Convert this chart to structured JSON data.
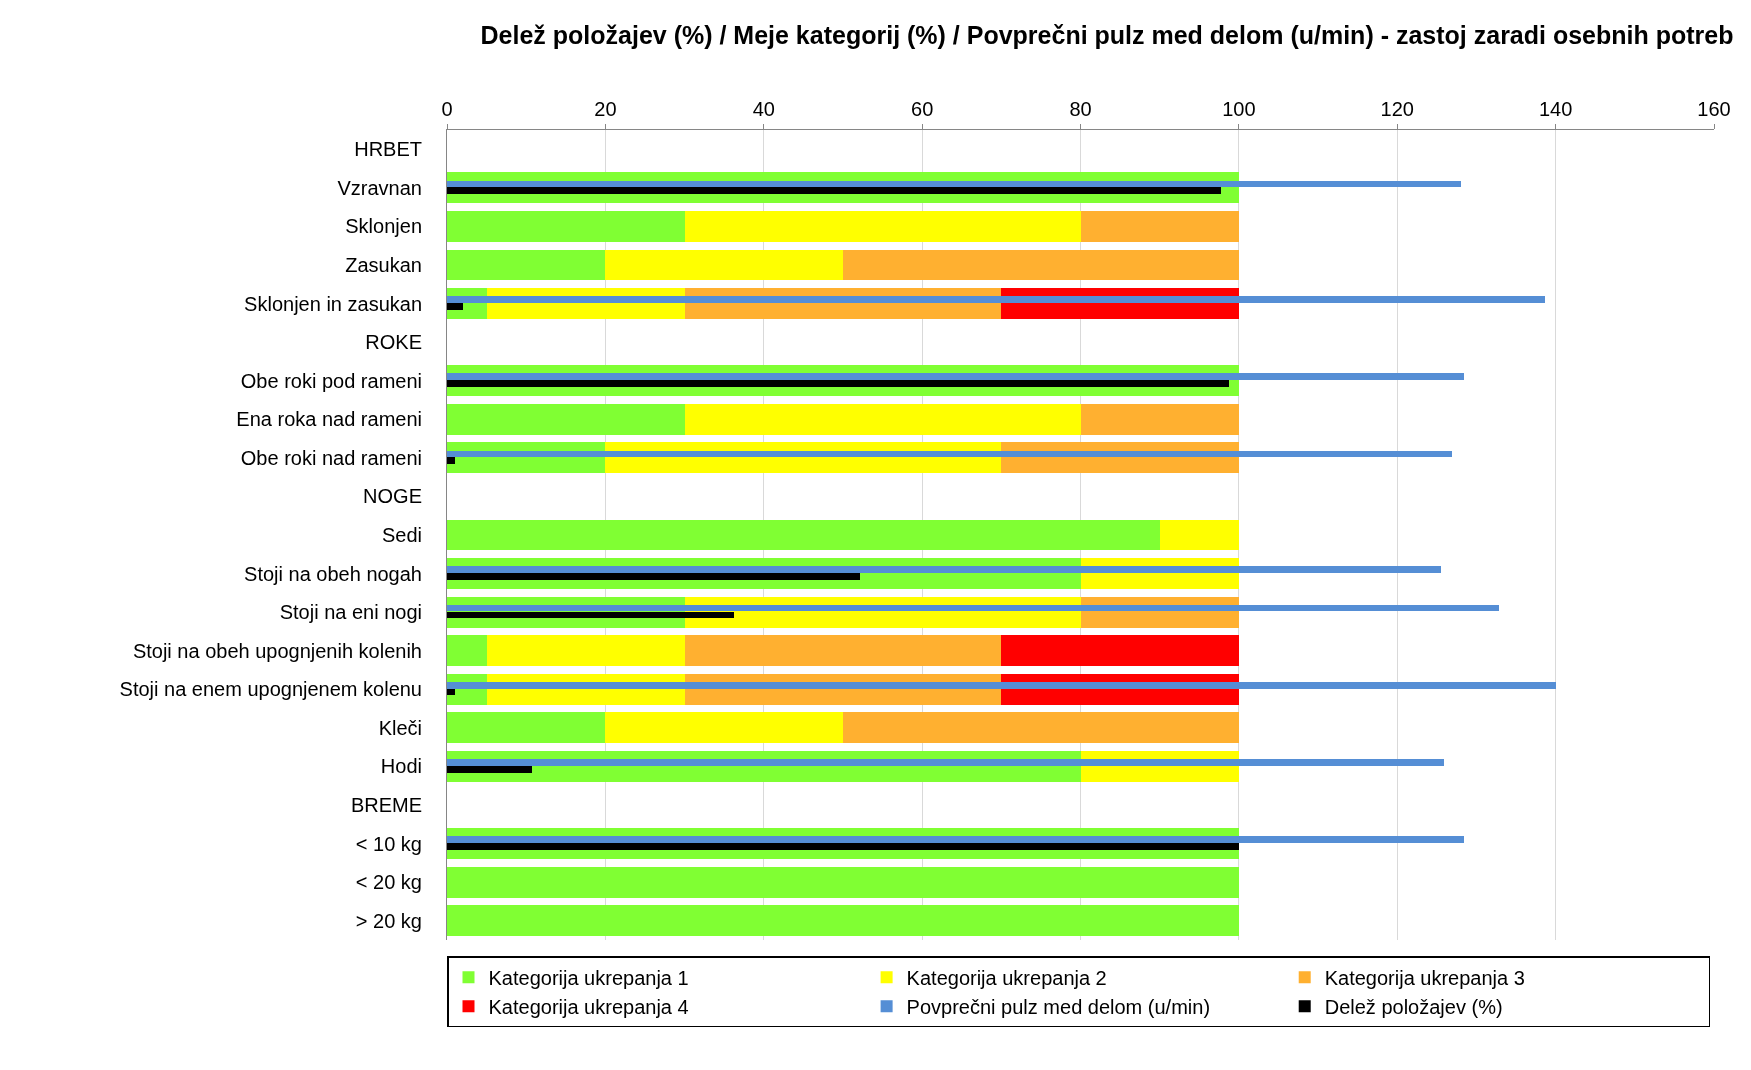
{
  "chart_data": {
    "type": "bar",
    "orientation": "horizontal",
    "title": "Delež položajev (%) / Meje kategorij (%) / Povprečni pulz med delom (u/min) - zastoj zaradi osebnih potreb",
    "categories": [
      "HRBET",
      "Vzravnan",
      "Sklonjen",
      "Zasukan",
      "Sklonjen in zasukan",
      "ROKE",
      "Obe roki pod rameni",
      "Ena roka nad rameni",
      "Obe roki nad rameni",
      "NOGE",
      "Sedi",
      "Stoji na obeh nogah",
      "Stoji na eni nogi",
      "Stoji na obeh upognjenih kolenih",
      "Stoji na enem upognjenem kolenu",
      "Kleči",
      "Hodi",
      "BREME",
      "< 10 kg",
      "< 20 kg",
      "> 20 kg"
    ],
    "series": [
      {
        "name": "Kategorija ukrepanja 1",
        "color": "#80ff33",
        "values": [
          null,
          100,
          30,
          20,
          5,
          null,
          100,
          30,
          20,
          null,
          90,
          80,
          30,
          5,
          5,
          20,
          80,
          null,
          100,
          100,
          100
        ],
        "base": [
          null,
          0,
          0,
          0,
          0,
          null,
          0,
          0,
          0,
          null,
          0,
          0,
          0,
          0,
          0,
          0,
          0,
          null,
          0,
          0,
          0
        ]
      },
      {
        "name": "Kategorija ukrepanja 2",
        "color": "#ffff00",
        "values": [
          null,
          null,
          50,
          30,
          25,
          null,
          null,
          50,
          50,
          null,
          10,
          20,
          50,
          25,
          25,
          30,
          20,
          null,
          null,
          null,
          null
        ],
        "base": [
          null,
          null,
          30,
          20,
          5,
          null,
          null,
          30,
          20,
          null,
          90,
          80,
          30,
          5,
          5,
          20,
          80,
          null,
          null,
          null,
          null
        ]
      },
      {
        "name": "Kategorija ukrepanja 3",
        "color": "#ffb030",
        "values": [
          null,
          null,
          20,
          50,
          40,
          null,
          null,
          20,
          30,
          null,
          null,
          null,
          20,
          40,
          40,
          50,
          null,
          null,
          null,
          null,
          null
        ],
        "base": [
          null,
          null,
          80,
          50,
          30,
          null,
          null,
          80,
          70,
          null,
          null,
          null,
          80,
          30,
          30,
          50,
          null,
          null,
          null,
          null,
          null
        ]
      },
      {
        "name": "Kategorija ukrepanja 4",
        "color": "#ff0000",
        "values": [
          null,
          null,
          null,
          null,
          30,
          null,
          null,
          null,
          null,
          null,
          null,
          null,
          null,
          30,
          30,
          null,
          null,
          null,
          null,
          null,
          null
        ],
        "base": [
          null,
          null,
          null,
          null,
          70,
          null,
          null,
          null,
          null,
          null,
          null,
          null,
          null,
          70,
          70,
          null,
          null,
          null,
          null,
          null,
          null
        ]
      },
      {
        "name": "Povprečni pulz med delom (u/min)",
        "color": "#558ed5",
        "type": "bar",
        "values": [
          null,
          128,
          null,
          null,
          138.6,
          null,
          128.4,
          null,
          126.9,
          null,
          null,
          125.5,
          132.9,
          null,
          140,
          null,
          125.9,
          null,
          128.4,
          null,
          null
        ]
      },
      {
        "name": "Delež položajev (%)",
        "color": "#000000",
        "type": "bar",
        "values": [
          null,
          97.8,
          null,
          null,
          2,
          null,
          98.8,
          null,
          1,
          null,
          null,
          52.2,
          36.2,
          null,
          1,
          null,
          10.7,
          null,
          100,
          null,
          null
        ]
      }
    ],
    "xlim": [
      0,
      160
    ],
    "xticks": [
      0,
      20,
      40,
      60,
      80,
      100,
      120,
      140,
      160
    ],
    "grid": "x",
    "legend": "bottom"
  }
}
